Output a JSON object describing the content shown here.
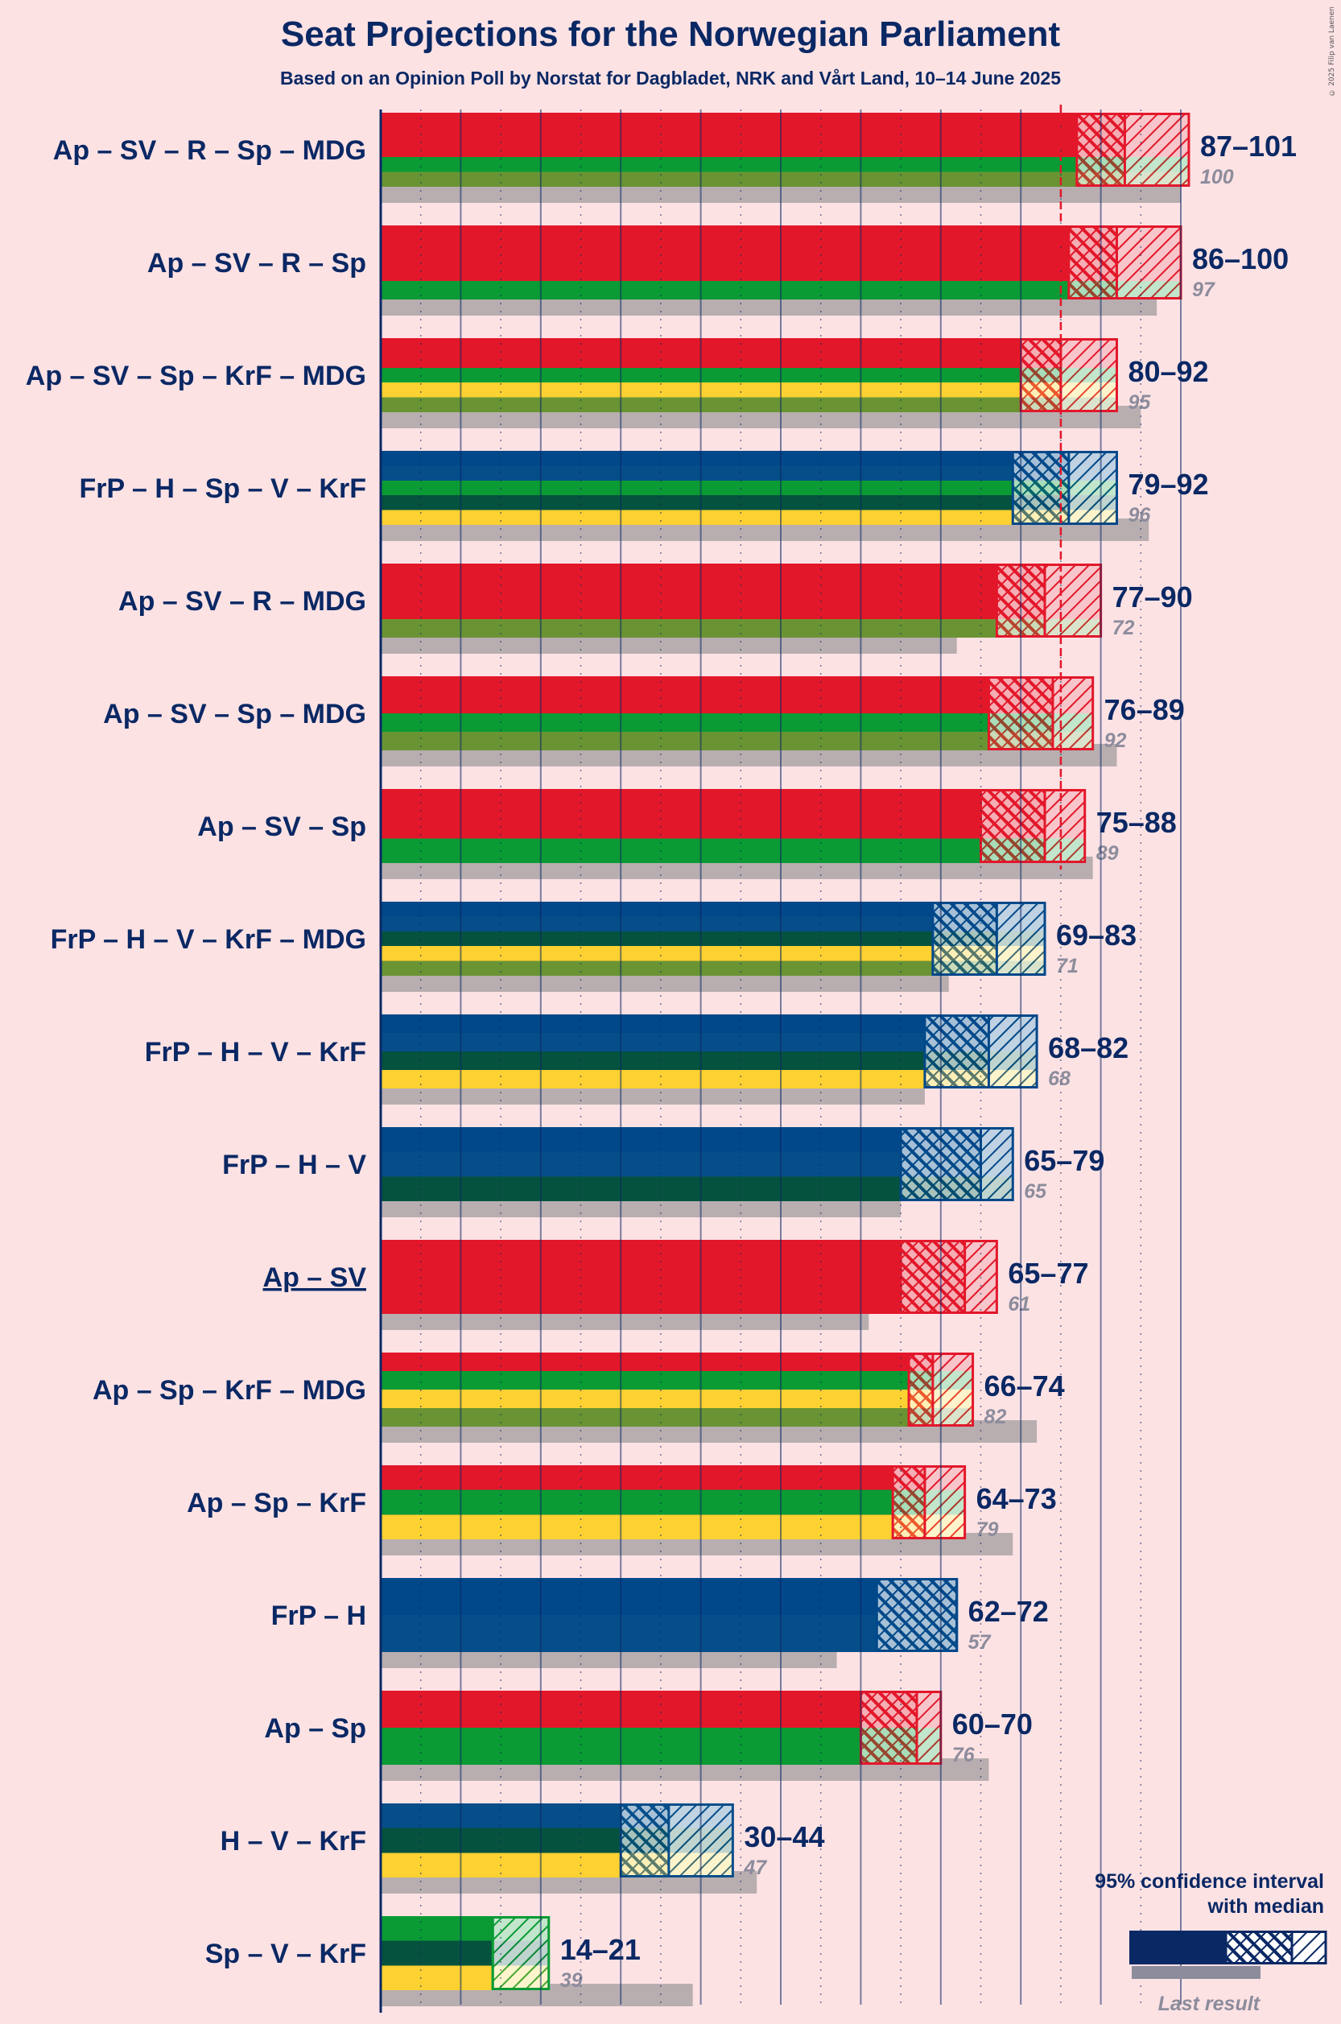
{
  "title": "Seat Projections for the Norwegian Parliament",
  "subtitle": "Based on an Opinion Poll by Norstat for Dagbladet, NRK and Vårt Land, 10–14 June 2025",
  "copyright": "© 2025 Filip van Laenen",
  "legend": {
    "title_line1": "95% confidence interval",
    "title_line2": "with median",
    "last_result": "Last result"
  },
  "colors": {
    "Ap": "#e3172a",
    "SV": "#e3172a",
    "R": "#e3172a",
    "Sp": "#0a9b34",
    "MDG": "#6a9433",
    "KrF": "#fcd131",
    "FrP": "#00488a",
    "H": "#054e8a",
    "V": "#05523e",
    "navy": "#0a2864",
    "grey": "#b8aeb0",
    "majority": "#e3172a"
  },
  "chart_data": {
    "type": "bar",
    "orientation": "horizontal",
    "title": "Seat Projections for the Norwegian Parliament",
    "subtitle": "Based on an Opinion Poll by Norstat for Dagbladet, NRK and Vårt Land, 10–14 June 2025",
    "xlim": [
      0,
      101
    ],
    "majority": 85,
    "series_description": "For each coalition: 95% confidence interval (low–high), median, and last election result",
    "coalitions": [
      {
        "label": "Ap – SV – R – Sp – MDG",
        "parties": [
          "Ap",
          "SV",
          "R",
          "Sp",
          "MDG"
        ],
        "low": 87,
        "median": 93,
        "high": 101,
        "range": "87–101",
        "last": 100,
        "last_text": "100",
        "underline": false
      },
      {
        "label": "Ap – SV – R – Sp",
        "parties": [
          "Ap",
          "SV",
          "R",
          "Sp"
        ],
        "low": 86,
        "median": 92,
        "high": 100,
        "range": "86–100",
        "last": 97,
        "last_text": "97",
        "underline": false
      },
      {
        "label": "Ap – SV – Sp – KrF – MDG",
        "parties": [
          "Ap",
          "SV",
          "Sp",
          "KrF",
          "MDG"
        ],
        "low": 80,
        "median": 85,
        "high": 92,
        "range": "80–92",
        "last": 95,
        "last_text": "95",
        "underline": false
      },
      {
        "label": "FrP – H – Sp – V – KrF",
        "parties": [
          "FrP",
          "H",
          "Sp",
          "V",
          "KrF"
        ],
        "low": 79,
        "median": 86,
        "high": 92,
        "range": "79–92",
        "last": 96,
        "last_text": "96",
        "underline": false
      },
      {
        "label": "Ap – SV – R – MDG",
        "parties": [
          "Ap",
          "SV",
          "R",
          "MDG"
        ],
        "low": 77,
        "median": 83,
        "high": 90,
        "range": "77–90",
        "last": 72,
        "last_text": "72",
        "underline": false
      },
      {
        "label": "Ap – SV – Sp – MDG",
        "parties": [
          "Ap",
          "SV",
          "Sp",
          "MDG"
        ],
        "low": 76,
        "median": 84,
        "high": 89,
        "range": "76–89",
        "last": 92,
        "last_text": "92",
        "underline": false
      },
      {
        "label": "Ap – SV – Sp",
        "parties": [
          "Ap",
          "SV",
          "Sp"
        ],
        "low": 75,
        "median": 83,
        "high": 88,
        "range": "75–88",
        "last": 89,
        "last_text": "89",
        "underline": false
      },
      {
        "label": "FrP – H – V – KrF – MDG",
        "parties": [
          "FrP",
          "H",
          "V",
          "KrF",
          "MDG"
        ],
        "low": 69,
        "median": 77,
        "high": 83,
        "range": "69–83",
        "last": 71,
        "last_text": "71",
        "underline": false
      },
      {
        "label": "FrP – H – V – KrF",
        "parties": [
          "FrP",
          "H",
          "V",
          "KrF"
        ],
        "low": 68,
        "median": 76,
        "high": 82,
        "range": "68–82",
        "last": 68,
        "last_text": "68",
        "underline": false
      },
      {
        "label": "FrP – H – V",
        "parties": [
          "FrP",
          "H",
          "V"
        ],
        "low": 65,
        "median": 75,
        "high": 79,
        "range": "65–79",
        "last": 65,
        "last_text": "65",
        "underline": false
      },
      {
        "label": "Ap – SV",
        "parties": [
          "Ap",
          "SV"
        ],
        "low": 65,
        "median": 73,
        "high": 77,
        "range": "65–77",
        "last": 61,
        "last_text": "61",
        "underline": true
      },
      {
        "label": "Ap – Sp – KrF – MDG",
        "parties": [
          "Ap",
          "Sp",
          "KrF",
          "MDG"
        ],
        "low": 66,
        "median": 69,
        "high": 74,
        "range": "66–74",
        "last": 82,
        "last_text": "82",
        "underline": false
      },
      {
        "label": "Ap – Sp – KrF",
        "parties": [
          "Ap",
          "Sp",
          "KrF"
        ],
        "low": 64,
        "median": 68,
        "high": 73,
        "range": "64–73",
        "last": 79,
        "last_text": "79",
        "underline": false
      },
      {
        "label": "FrP – H",
        "parties": [
          "FrP",
          "H"
        ],
        "low": 62,
        "median": 72,
        "high": 72,
        "range": "62–72",
        "last": 57,
        "last_text": "57",
        "underline": false
      },
      {
        "label": "Ap – Sp",
        "parties": [
          "Ap",
          "Sp"
        ],
        "low": 60,
        "median": 67,
        "high": 70,
        "range": "60–70",
        "last": 76,
        "last_text": "76",
        "underline": false
      },
      {
        "label": "H – V – KrF",
        "parties": [
          "H",
          "V",
          "KrF"
        ],
        "low": 30,
        "median": 36,
        "high": 44,
        "range": "30–44",
        "last": 47,
        "last_text": "47",
        "underline": false
      },
      {
        "label": "Sp – V – KrF",
        "parties": [
          "Sp",
          "V",
          "KrF"
        ],
        "low": 14,
        "median": 14,
        "high": 21,
        "range": "14–21",
        "last": 39,
        "last_text": "39",
        "underline": false
      }
    ]
  }
}
